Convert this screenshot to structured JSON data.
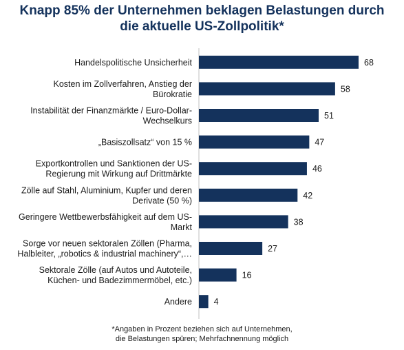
{
  "chart_data": {
    "type": "bar",
    "orientation": "horizontal",
    "title": "Knapp 85% der Unternehmen beklagen Belastungen durch die aktuelle US-Zollpolitik*",
    "title_lines": [
      "Knapp 85% der Unternehmen beklagen Belastungen durch",
      "die aktuelle US-Zollpolitik*"
    ],
    "categories": [
      [
        "Handelspolitische Unsicherheit"
      ],
      [
        "Kosten im Zollverfahren, Anstieg der",
        "Bürokratie"
      ],
      [
        "Instabilität der Finanzmärkte / Euro-Dollar-",
        "Wechselkurs"
      ],
      [
        "„Basiszollsatz“ von 15 %"
      ],
      [
        "Exportkontrollen und Sanktionen der US-",
        "Regierung mit Wirkung auf Drittmärkte"
      ],
      [
        "Zölle auf Stahl, Aluminium, Kupfer und deren",
        "Derivate (50 %)"
      ],
      [
        "Geringere Wettbewerbsfähigkeit auf dem US-",
        "Markt"
      ],
      [
        "Sorge vor neuen sektoralen Zöllen (Pharma,",
        "Halbleiter, „robotics & industrial machinery“,…"
      ],
      [
        "Sektorale Zölle (auf Autos und Autoteile,",
        "Küchen- und Badezimmermöbel, etc.)"
      ],
      [
        "Andere"
      ]
    ],
    "values": [
      68,
      58,
      51,
      47,
      46,
      42,
      38,
      27,
      16,
      4
    ],
    "xlim": [
      0,
      75
    ],
    "legend": "none",
    "grid": false,
    "bar_color": "#14325c",
    "axis_color": "#bfbfbf",
    "footnote_lines": [
      "*Angaben in Prozent beziehen sich auf Unternehmen,",
      "die Belastungen spüren; Mehrfachnennung möglich"
    ]
  }
}
